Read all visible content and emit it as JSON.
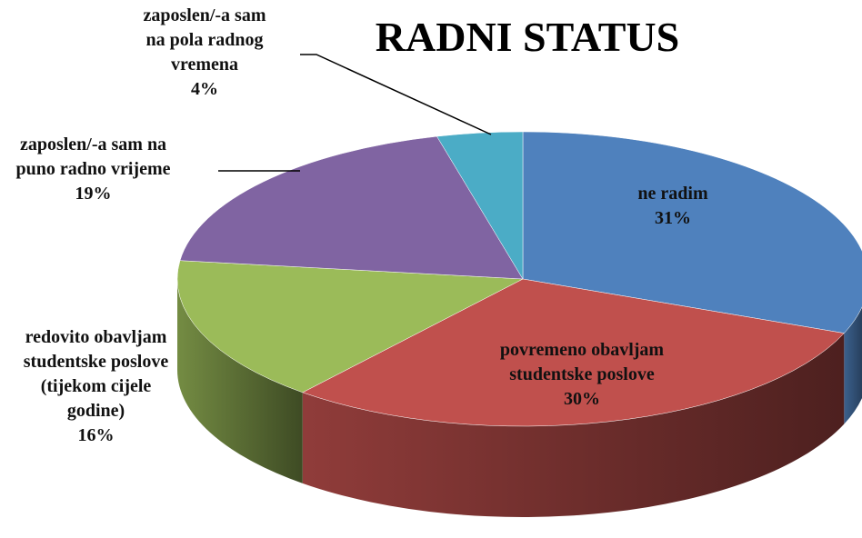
{
  "chart_data": {
    "type": "pie",
    "title": "RADNI STATUS",
    "categories": [
      "ne radim",
      "povremeno obavljam studentske poslove",
      "redovito obavljam studentske poslove (tijekom cijele godine)",
      "zaposlen/-a sam na puno radno vrijeme",
      "zaposlen/-a sam na pola radnog vremena"
    ],
    "values": [
      31,
      30,
      16,
      19,
      4
    ],
    "value_labels": [
      "31%",
      "30%",
      "16%",
      "19%",
      "4%"
    ],
    "colors": [
      "#4f81bd",
      "#c0504d",
      "#9bbb59",
      "#8064a2",
      "#4bacc6"
    ]
  }
}
